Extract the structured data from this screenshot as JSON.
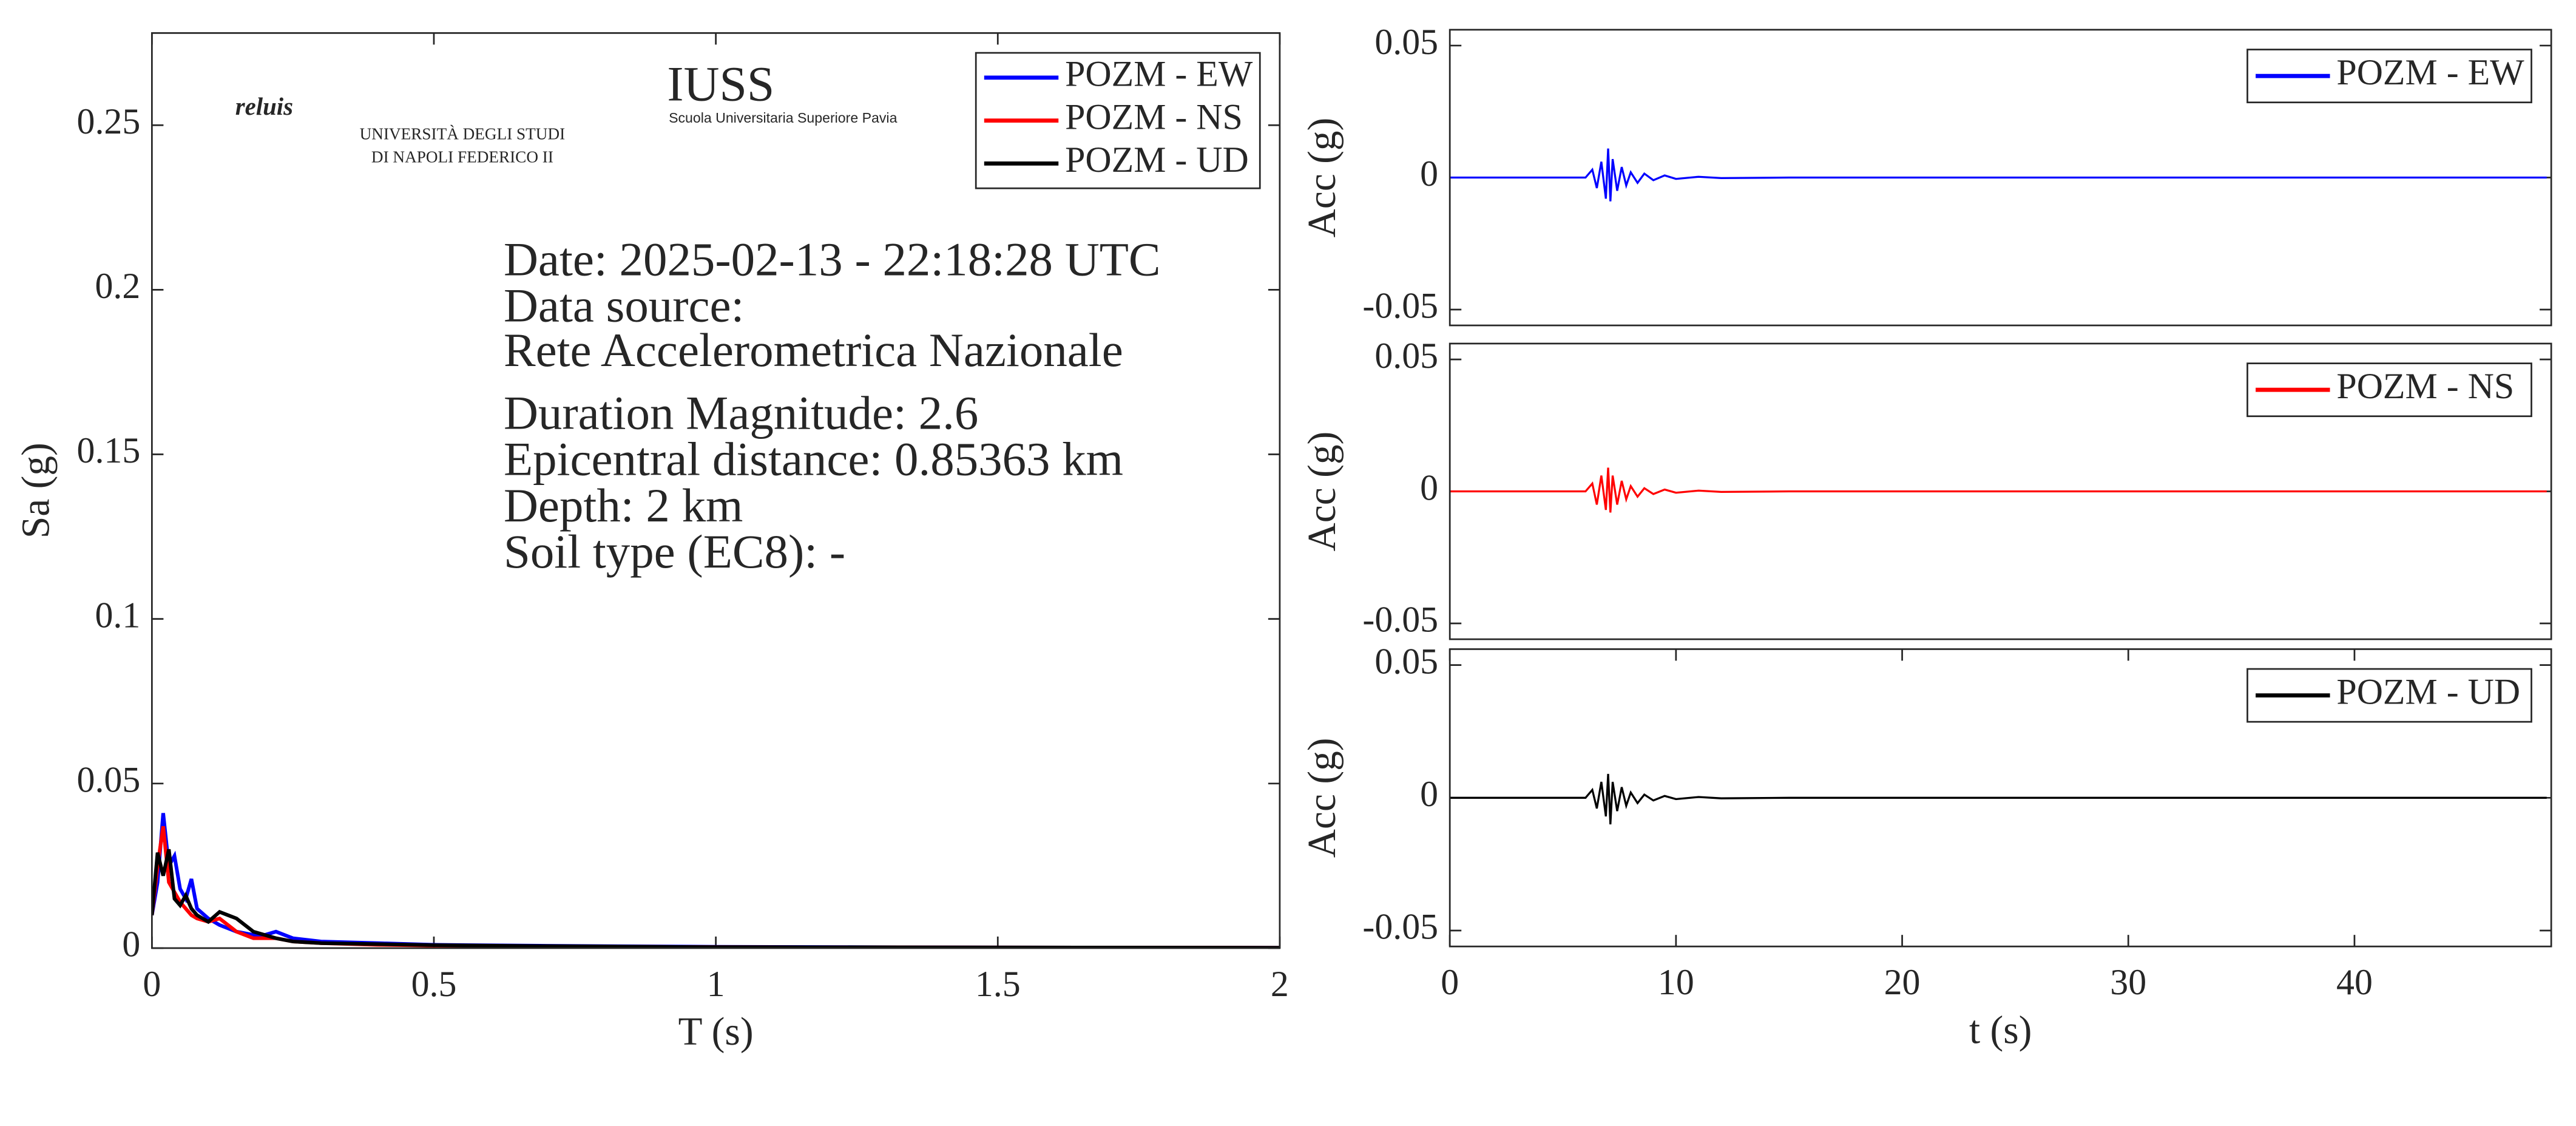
{
  "chart_data": [
    {
      "type": "line",
      "xlabel": "T (s)",
      "ylabel": "Sa (g)",
      "xlim": [
        0,
        2
      ],
      "xticks": [
        0,
        0.5,
        1,
        1.5,
        2
      ],
      "ylim": [
        0,
        0.278
      ],
      "yticks": [
        0,
        0.05,
        0.1,
        0.15,
        0.2,
        0.25
      ],
      "grid": false,
      "legend": "upper right",
      "x": [
        0,
        0.01,
        0.02,
        0.03,
        0.04,
        0.05,
        0.06,
        0.07,
        0.08,
        0.1,
        0.12,
        0.15,
        0.18,
        0.2,
        0.22,
        0.25,
        0.3,
        0.4,
        0.5,
        0.7,
        1,
        1.5,
        2
      ],
      "series": [
        {
          "name": "POZM - EW",
          "color": "#0000ff",
          "values": [
            0.01,
            0.02,
            0.041,
            0.025,
            0.028,
            0.018,
            0.015,
            0.021,
            0.012,
            0.009,
            0.007,
            0.005,
            0.004,
            0.004,
            0.005,
            0.003,
            0.002,
            0.0015,
            0.001,
            0.0007,
            0.0004,
            0.0002,
            0.0001
          ]
        },
        {
          "name": "POZM - NS",
          "color": "#ff0000",
          "values": [
            0.01,
            0.025,
            0.037,
            0.02,
            0.017,
            0.014,
            0.012,
            0.01,
            0.009,
            0.008,
            0.009,
            0.005,
            0.003,
            0.003,
            0.003,
            0.002,
            0.0015,
            0.001,
            0.0008,
            0.0005,
            0.0003,
            0.0002,
            0.0001
          ]
        },
        {
          "name": "POZM - UD",
          "color": "#000000",
          "values": [
            0.01,
            0.029,
            0.022,
            0.03,
            0.015,
            0.013,
            0.016,
            0.012,
            0.01,
            0.008,
            0.011,
            0.009,
            0.005,
            0.004,
            0.003,
            0.002,
            0.0015,
            0.0012,
            0.0009,
            0.0006,
            0.0003,
            0.0002,
            0.0001
          ]
        }
      ],
      "annotations": [
        "Date: 2025-02-13 - 22:18:28 UTC",
        "Data source:",
        "Rete Accelerometrica Nazionale",
        "Duration Magnitude: 2.6",
        "Epicentral distance: 0.85363 km",
        "Depth: 2 km",
        "Soil type (EC8): -"
      ],
      "logos": [
        "reluis",
        "UNIVERSITÀ DEGLI STUDI",
        "DI NAPOLI FEDERICO II",
        "IUSS",
        "Scuola Universitaria Superiore Pavia"
      ]
    },
    {
      "type": "line",
      "ylabel": "Acc (g)",
      "xlim": [
        0,
        48.7
      ],
      "ylim": [
        -0.056,
        0.056
      ],
      "yticks": [
        0.05,
        0,
        -0.05
      ],
      "grid": false,
      "legend": "upper right",
      "x": [
        0,
        6,
        6.3,
        6.5,
        6.7,
        6.9,
        7.0,
        7.1,
        7.2,
        7.4,
        7.6,
        7.8,
        8.0,
        8.3,
        8.6,
        9,
        9.5,
        10,
        11,
        12,
        15,
        48.5
      ],
      "series": [
        {
          "name": "POZM - EW",
          "color": "#0000ff",
          "values": [
            0,
            0,
            0.003,
            -0.004,
            0.006,
            -0.008,
            0.011,
            -0.009,
            0.007,
            -0.005,
            0.004,
            -0.003,
            0.002,
            -0.002,
            0.0015,
            -0.001,
            0.0008,
            -0.0005,
            0.0003,
            -0.0002,
            0,
            0
          ]
        }
      ]
    },
    {
      "type": "line",
      "ylabel": "Acc (g)",
      "xlim": [
        0,
        48.7
      ],
      "ylim": [
        -0.056,
        0.056
      ],
      "yticks": [
        0.05,
        0,
        -0.05
      ],
      "grid": false,
      "legend": "upper right",
      "x": [
        0,
        6,
        6.3,
        6.5,
        6.7,
        6.9,
        7.0,
        7.1,
        7.2,
        7.4,
        7.6,
        7.8,
        8.0,
        8.3,
        8.6,
        9,
        9.5,
        10,
        11,
        12,
        15,
        48.5
      ],
      "series": [
        {
          "name": "POZM - NS",
          "color": "#ff0000",
          "values": [
            0,
            0,
            0.003,
            -0.005,
            0.006,
            -0.007,
            0.009,
            -0.008,
            0.006,
            -0.005,
            0.004,
            -0.003,
            0.002,
            -0.002,
            0.0012,
            -0.001,
            0.0007,
            -0.0005,
            0.0003,
            -0.0002,
            0,
            0
          ]
        }
      ]
    },
    {
      "type": "line",
      "ylabel": "Acc (g)",
      "xlabel": "t (s)",
      "xlim": [
        0,
        48.7
      ],
      "xticks": [
        0,
        10,
        20,
        30,
        40
      ],
      "ylim": [
        -0.056,
        0.056
      ],
      "yticks": [
        0.05,
        0,
        -0.05
      ],
      "grid": false,
      "legend": "upper right",
      "x": [
        0,
        6,
        6.3,
        6.5,
        6.7,
        6.9,
        7.0,
        7.1,
        7.2,
        7.4,
        7.6,
        7.8,
        8.0,
        8.3,
        8.6,
        9,
        9.5,
        10,
        11,
        12,
        15,
        48.5
      ],
      "series": [
        {
          "name": "POZM - UD",
          "color": "#000000",
          "values": [
            0,
            0,
            0.003,
            -0.004,
            0.006,
            -0.007,
            0.009,
            -0.01,
            0.006,
            -0.005,
            0.004,
            -0.003,
            0.002,
            -0.002,
            0.0012,
            -0.001,
            0.0007,
            -0.0005,
            0.0003,
            -0.0002,
            0,
            0
          ]
        }
      ]
    }
  ]
}
